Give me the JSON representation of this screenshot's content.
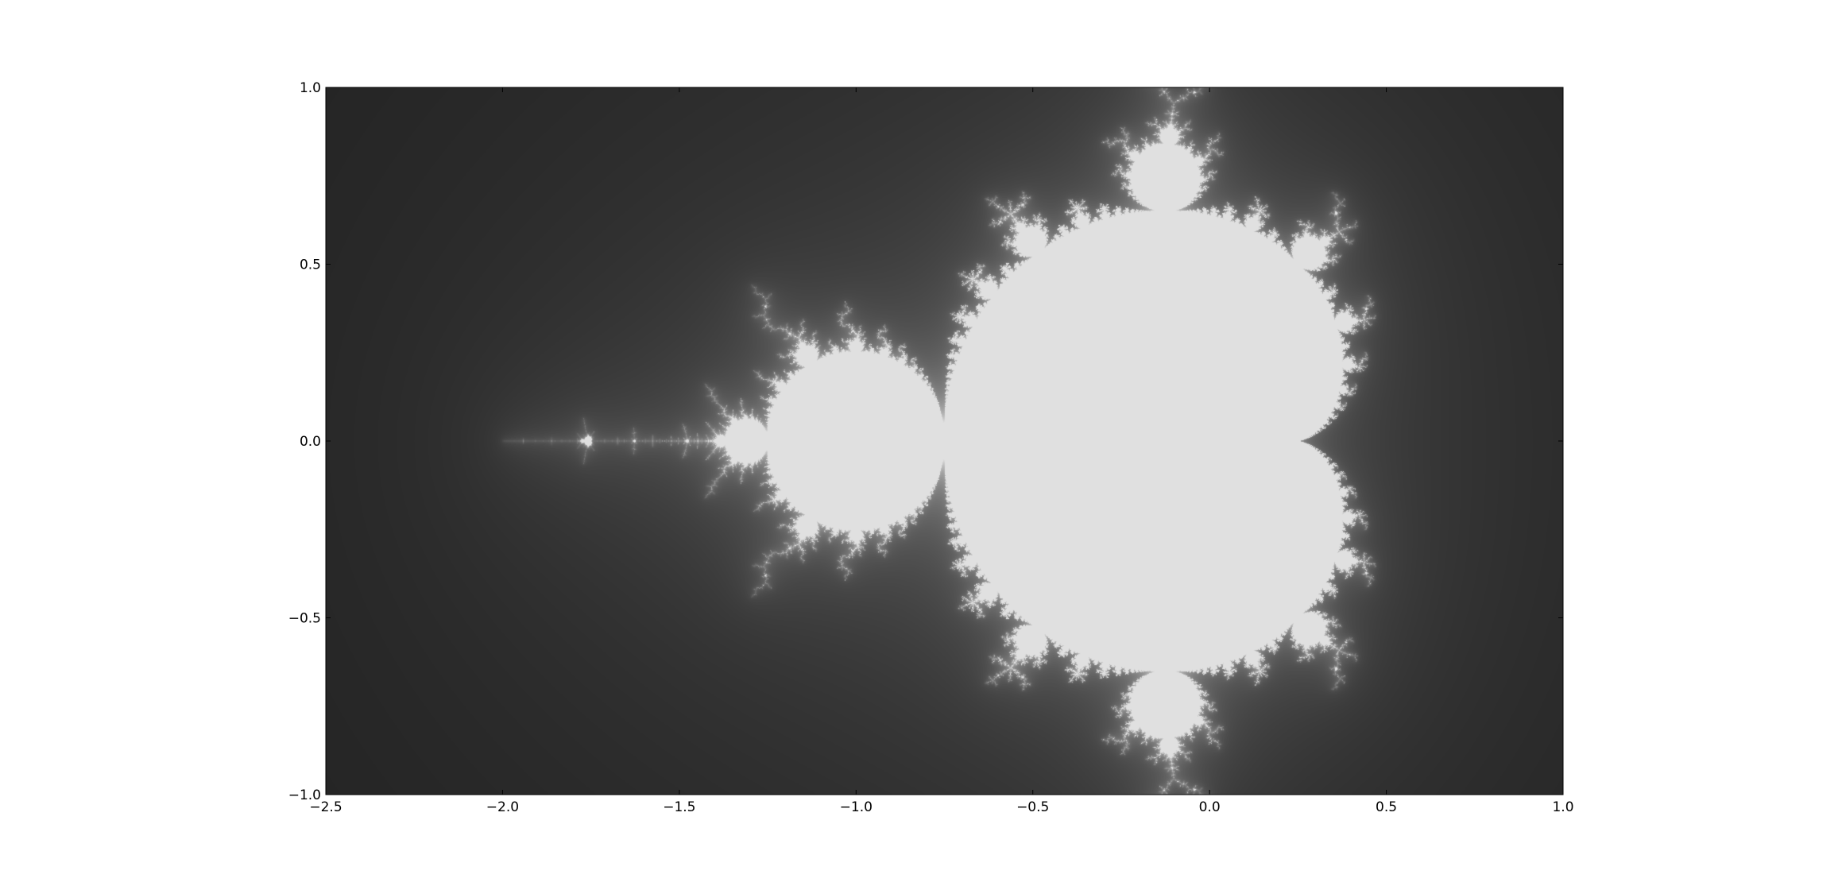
{
  "chart_data": {
    "type": "heatmap",
    "title": "",
    "xlabel": "",
    "ylabel": "",
    "xlim": [
      -2.5,
      1.0
    ],
    "ylim": [
      -1.0,
      1.0
    ],
    "x_ticks": [
      -2.5,
      -2.0,
      -1.5,
      -1.0,
      -0.5,
      0.0,
      0.5,
      1.0
    ],
    "y_ticks": [
      -1.0,
      -0.5,
      0.0,
      0.5,
      1.0
    ],
    "x_tick_labels": [
      "−2.5",
      "−2.0",
      "−1.5",
      "−1.0",
      "−0.5",
      "0.0",
      "0.5",
      "1.0"
    ],
    "y_tick_labels": [
      "−1.0",
      "−0.5",
      "0.0",
      "0.5",
      "1.0"
    ],
    "grid": false,
    "colormap": "gray",
    "max_iterations": 256,
    "colors": {
      "inside": "#e0e0e0",
      "outside_dark": "#000000",
      "tick_text": "#000000",
      "background": "#ffffff"
    }
  }
}
